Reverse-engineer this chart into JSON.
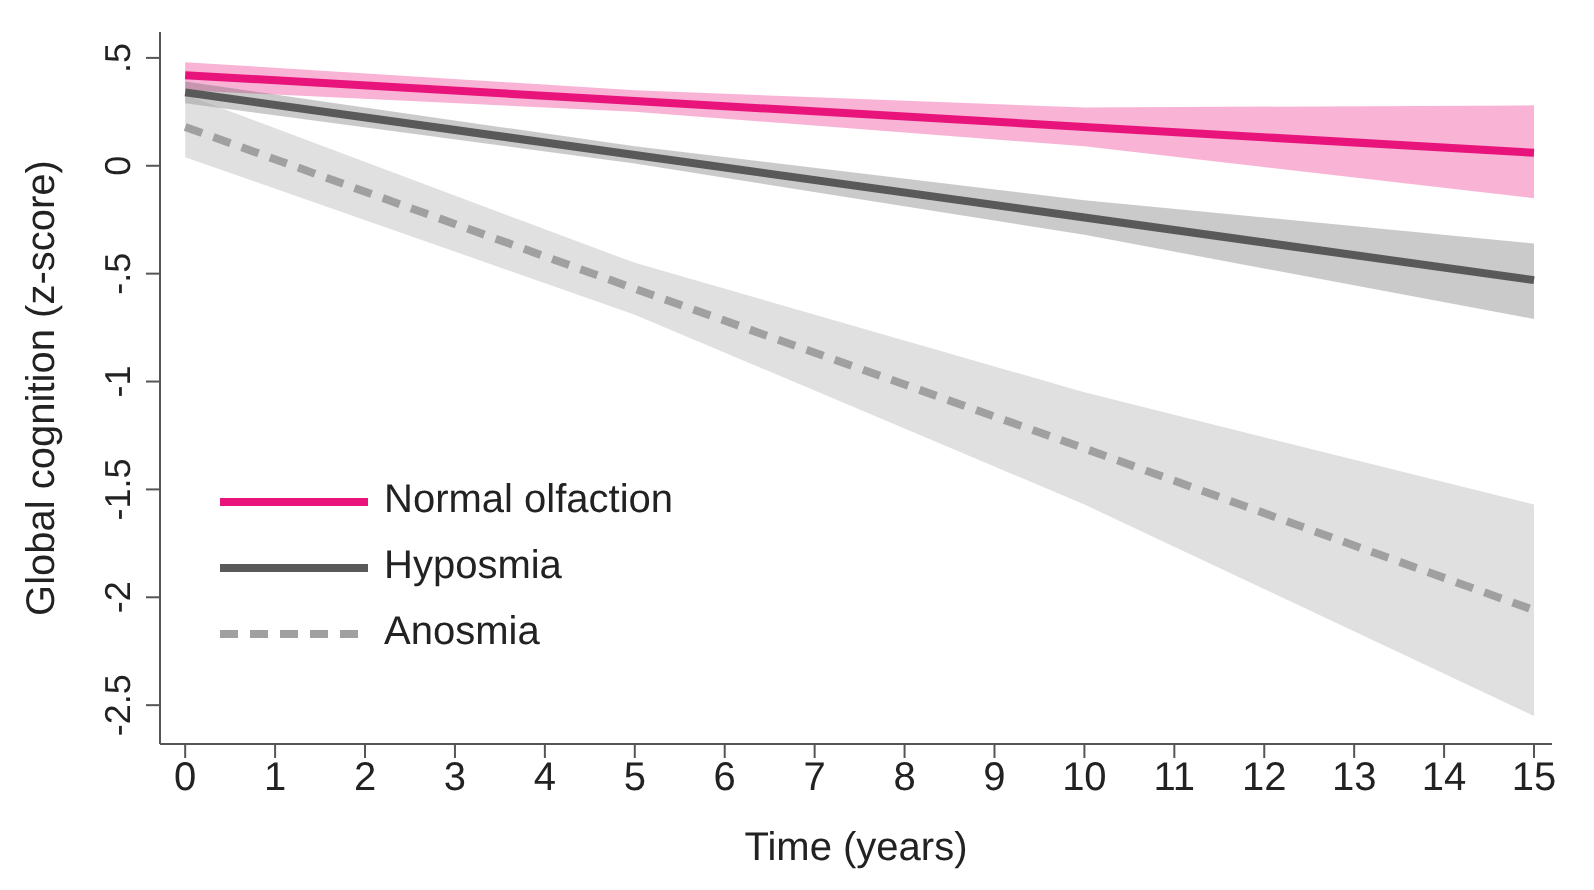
{
  "chart_data": {
    "type": "line",
    "xlabel": "Time (years)",
    "ylabel": "Global cognition (z-score)",
    "x": [
      0,
      5,
      10,
      15
    ],
    "series": [
      {
        "name": "Normal olfaction",
        "color": "#e8137b",
        "values": [
          0.42,
          0.3,
          0.18,
          0.06
        ],
        "lower": [
          0.35,
          0.25,
          0.09,
          -0.15
        ],
        "upper": [
          0.48,
          0.35,
          0.27,
          0.28
        ],
        "line_style": "solid"
      },
      {
        "name": "Hyposmia",
        "color": "#595959",
        "values": [
          0.34,
          0.05,
          -0.24,
          -0.53
        ],
        "lower": [
          0.29,
          0.01,
          -0.32,
          -0.71
        ],
        "upper": [
          0.39,
          0.09,
          -0.16,
          -0.36
        ],
        "line_style": "solid"
      },
      {
        "name": "Anosmia",
        "color": "#a0a0a0",
        "values": [
          0.18,
          -0.57,
          -1.31,
          -2.06
        ],
        "lower": [
          0.04,
          -0.69,
          -1.57,
          -2.55
        ],
        "upper": [
          0.33,
          -0.45,
          -1.05,
          -1.57
        ],
        "line_style": "dashed"
      }
    ],
    "xlim": [
      -0.28,
      15.2
    ],
    "xticks": [
      0,
      1,
      2,
      3,
      4,
      5,
      6,
      7,
      8,
      9,
      10,
      11,
      12,
      13,
      14,
      15
    ],
    "ylim": [
      -2.68,
      0.62
    ],
    "yticks": [
      {
        "value": 0.5,
        "label": ".5"
      },
      0,
      {
        "value": -0.5,
        "label": "-.5"
      },
      -1,
      -1.5,
      -2,
      -2.5
    ],
    "legend": "bottom left",
    "marker": "none"
  }
}
